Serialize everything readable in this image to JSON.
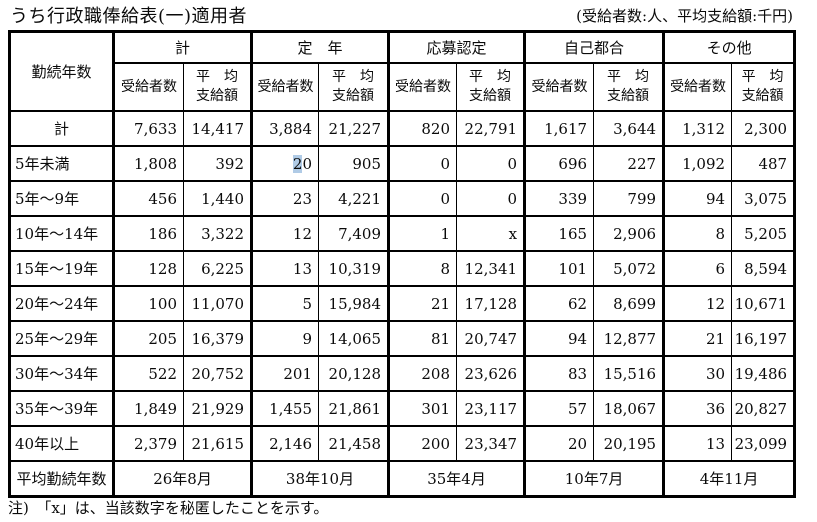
{
  "page": {
    "title": "うち行政職俸給表(一)適用者",
    "units_note": "(受給者数:人、平均支給額:千円)",
    "footnote": "注)　「x」は、当該数字を秘匿したことを示す。"
  },
  "table": {
    "row_header_label": "勤続年数",
    "groups": [
      {
        "label": "計"
      },
      {
        "label": "定　年"
      },
      {
        "label": "応募認定"
      },
      {
        "label": "自己都合"
      },
      {
        "label": "その他"
      }
    ],
    "sub_headers": {
      "recipients": "受給者数",
      "average_line1": "平　均",
      "average_line2": "支給額"
    },
    "rows": [
      {
        "label": "計",
        "center": true,
        "cells": [
          "7,633",
          "14,417",
          "3,884",
          "21,227",
          "820",
          "22,791",
          "1,617",
          "3,644",
          "1,312",
          "2,300"
        ]
      },
      {
        "label": "5年未満",
        "cells": [
          "1,808",
          "392",
          {
            "pre": "",
            "sel": "2",
            "post": "0"
          },
          "905",
          "0",
          "0",
          "696",
          "227",
          "1,092",
          "487"
        ]
      },
      {
        "label": "5年〜9年",
        "cells": [
          "456",
          "1,440",
          "23",
          "4,221",
          "0",
          "0",
          "339",
          "799",
          "94",
          "3,075"
        ]
      },
      {
        "label": "10年〜14年",
        "cells": [
          "186",
          "3,322",
          "12",
          "7,409",
          "1",
          "x",
          "165",
          "2,906",
          "8",
          "5,205"
        ]
      },
      {
        "label": "15年〜19年",
        "cells": [
          "128",
          "6,225",
          "13",
          "10,319",
          "8",
          "12,341",
          "101",
          "5,072",
          "6",
          "8,594"
        ]
      },
      {
        "label": "20年〜24年",
        "cells": [
          "100",
          "11,070",
          "5",
          "15,984",
          "21",
          "17,128",
          "62",
          "8,699",
          "12",
          "10,671"
        ]
      },
      {
        "label": "25年〜29年",
        "cells": [
          "205",
          "16,379",
          "9",
          "14,065",
          "81",
          "20,747",
          "94",
          "12,877",
          "21",
          "16,197"
        ]
      },
      {
        "label": "30年〜34年",
        "cells": [
          "522",
          "20,752",
          "201",
          "20,128",
          "208",
          "23,626",
          "83",
          "15,516",
          "30",
          "19,486"
        ]
      },
      {
        "label": "35年〜39年",
        "cells": [
          "1,849",
          "21,929",
          "1,455",
          "21,861",
          "301",
          "23,117",
          "57",
          "18,067",
          "36",
          "20,827"
        ]
      },
      {
        "label": "40年以上",
        "cells": [
          "2,379",
          "21,615",
          "2,146",
          "21,458",
          "200",
          "23,347",
          "20",
          "20,195",
          "13",
          "23,099"
        ]
      }
    ],
    "avg_row": {
      "label": "平均勤続年数",
      "cells": [
        "26年8月",
        "38年10月",
        "35年4月",
        "10年7月",
        "4年11月"
      ]
    },
    "selection_color": "#b0cbe6"
  }
}
